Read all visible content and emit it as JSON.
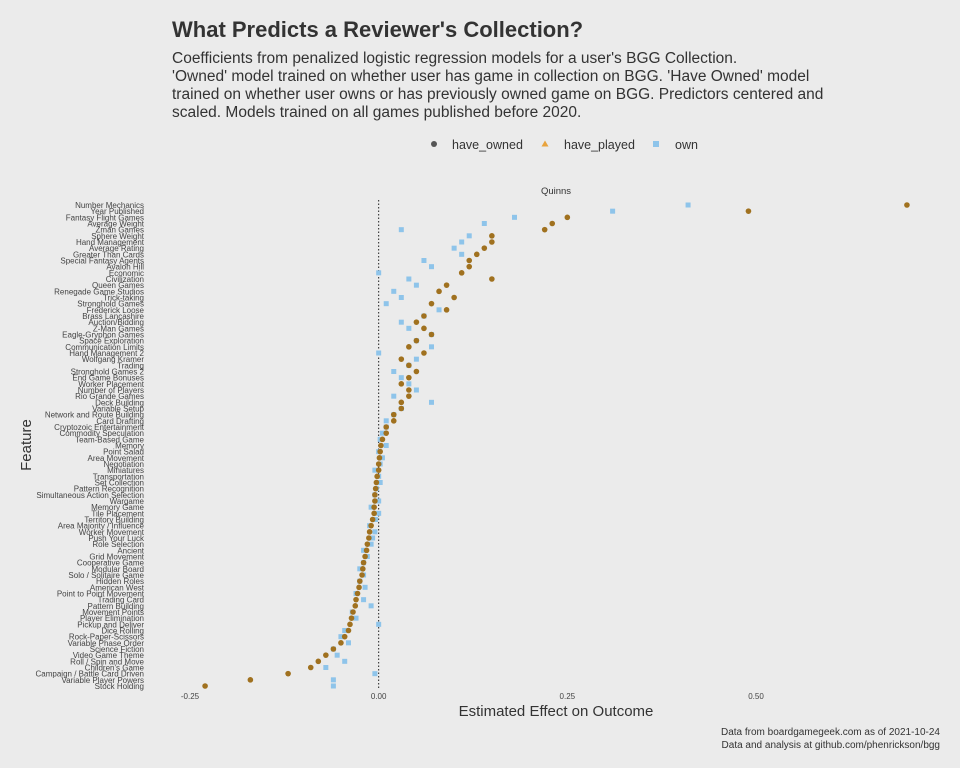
{
  "chart_data": {
    "type": "scatter",
    "title": "What Predicts a Reviewer's Collection?",
    "subtitle_lines": [
      "Coefficients from penalized logistic regression models for a user's BGG Collection.",
      "'Owned' model trained on whether user has game in collection on BGG. 'Have Owned' model",
      "trained on whether user owns or has previously owned game on BGG. Predictors centered and",
      "scaled. Models trained on all games published before 2020."
    ],
    "xlabel": "Estimated Effect on Outcome",
    "ylabel": "Feature",
    "xlim": [
      -0.32,
      0.78
    ],
    "xticks": [
      -0.25,
      0.0,
      0.25,
      0.5
    ],
    "xtick_labels": [
      "-0.25",
      "0.00",
      "0.25",
      "0.50"
    ],
    "reference_line_x": 0,
    "grid": false,
    "legend_position": "top",
    "colors": {
      "have_owned": "#a0711f",
      "have_played": "#e8a33d",
      "own": "#8ec4ea",
      "background": "#ebebeb"
    },
    "legend": [
      {
        "key": "have_owned",
        "label": "have_owned",
        "shape": "circle"
      },
      {
        "key": "have_played",
        "label": "have_played",
        "shape": "triangle"
      },
      {
        "key": "own",
        "label": "own",
        "shape": "square"
      }
    ],
    "annotation": "Quinns",
    "features": [
      "Number Mechanics",
      "Year Published",
      "Fantasy Flight Games",
      "Average Weight",
      "Zman Games",
      "Sphere Weight",
      "Hand Management",
      "Average Rating",
      "Greater Than Cards",
      "Special Fantasy Agents",
      "Avalon Hill",
      "Economic",
      "Civilization",
      "Queen Games",
      "Renegade Game Studios",
      "Trick-taking",
      "Stronghold Games",
      "Frederick Loose",
      "Brass Lancashire",
      "Auction/Bidding",
      "Z-Man Games",
      "Eagle-Gryphon Games",
      "Space Exploration",
      "Communication Limits",
      "Hand Management 2",
      "Wolfgang Kramer",
      "Trading",
      "Stronghold Games 2",
      "End Game Bonuses",
      "Worker Placement",
      "Number of Players",
      "Rio Grande Games",
      "Deck Building",
      "Variable Setup",
      "Network and Route Building",
      "Card Drafting",
      "Cryptozoic Entertainment",
      "Commodity Speculation",
      "Team-Based Game",
      "Memory",
      "Point Salad",
      "Area Movement",
      "Negotiation",
      "Miniatures",
      "Transportation",
      "Set Collection",
      "Pattern Recognition",
      "Simultaneous Action Selection",
      "Wargame",
      "Memory Game",
      "Tile Placement",
      "Territory Building",
      "Area Majority / Influence",
      "Worker Movement",
      "Push Your Luck",
      "Role Selection",
      "Ancient",
      "Grid Movement",
      "Cooperative Game",
      "Modular Board",
      "Solo / Solitaire Game",
      "Hidden Roles",
      "American West",
      "Point to Point Movement",
      "Trading Card",
      "Pattern Building",
      "Movement Points",
      "Player Elimination",
      "Pickup and Deliver",
      "Dice Rolling",
      "Rock-Paper-Scissors",
      "Variable Phase Order",
      "Science Fiction",
      "Video Game Theme",
      "Roll / Spin and Move",
      "Children's Game",
      "Campaign / Battle Card Driven",
      "Variable Player Powers",
      "Stock Holding"
    ],
    "series": [
      {
        "name": "have_owned",
        "values": [
          0.7,
          0.49,
          0.25,
          0.23,
          0.22,
          0.15,
          0.15,
          0.14,
          0.13,
          0.12,
          0.12,
          0.11,
          0.15,
          0.09,
          0.08,
          0.1,
          0.07,
          0.09,
          0.06,
          0.05,
          0.06,
          0.07,
          0.05,
          0.04,
          0.06,
          0.03,
          0.04,
          0.05,
          0.04,
          0.03,
          0.04,
          0.04,
          0.03,
          0.03,
          0.02,
          0.02,
          0.01,
          0.01,
          0.005,
          0.003,
          0.002,
          0.001,
          0.0,
          0.0,
          -0.002,
          -0.003,
          -0.004,
          -0.005,
          -0.005,
          -0.006,
          -0.006,
          -0.008,
          -0.01,
          -0.012,
          -0.013,
          -0.015,
          -0.016,
          -0.018,
          -0.02,
          -0.021,
          -0.022,
          -0.025,
          -0.026,
          -0.028,
          -0.03,
          -0.031,
          -0.034,
          -0.036,
          -0.038,
          -0.04,
          -0.045,
          -0.05,
          -0.06,
          -0.07,
          -0.08,
          -0.09,
          -0.12,
          -0.17,
          -0.23
        ]
      },
      {
        "name": "own",
        "values": [
          0.41,
          0.31,
          0.18,
          0.14,
          0.03,
          0.12,
          0.11,
          0.1,
          0.11,
          0.06,
          0.07,
          0.0,
          0.04,
          0.05,
          0.02,
          0.03,
          0.01,
          0.08,
          0.06,
          0.03,
          0.04,
          0.07,
          0.05,
          0.07,
          0.0,
          0.05,
          0.04,
          0.02,
          0.03,
          0.04,
          0.05,
          0.02,
          0.07,
          0.03,
          0.02,
          0.01,
          0.01,
          0.005,
          0.002,
          0.01,
          0.0,
          0.005,
          0.002,
          -0.005,
          0.0,
          0.002,
          -0.003,
          -0.005,
          0.0,
          -0.01,
          0.0,
          -0.004,
          -0.012,
          -0.005,
          -0.008,
          -0.01,
          -0.02,
          -0.015,
          -0.02,
          -0.025,
          -0.02,
          -0.025,
          -0.018,
          -0.03,
          -0.02,
          -0.01,
          -0.035,
          -0.03,
          0.0,
          -0.045,
          -0.05,
          -0.04,
          -0.06,
          -0.055,
          -0.045,
          -0.07,
          -0.005,
          -0.06,
          -0.06
        ]
      }
    ]
  },
  "caption": {
    "line1": "Data from boardgamegeek.com as of 2021-10-24",
    "line2": "Data and analysis at github.com/phenrickson/bgg"
  }
}
